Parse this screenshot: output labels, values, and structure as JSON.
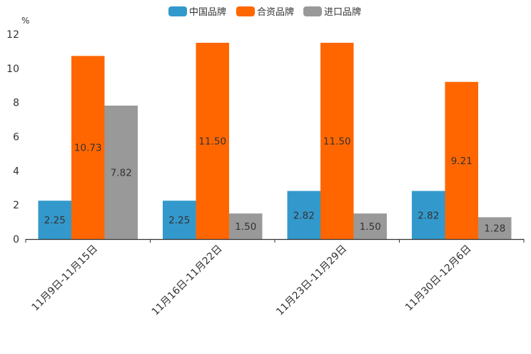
{
  "chart_data": {
    "type": "bar",
    "unit": "%",
    "categories": [
      "11月9日-11月15日",
      "11月16日-11月22日",
      "11月23日-11月29日",
      "11月30日-12月6日"
    ],
    "series": [
      {
        "name": "中国品牌",
        "color": "#3399cc",
        "values": [
          2.25,
          2.25,
          2.82,
          2.82
        ],
        "labels": [
          "2.25",
          "2.25",
          "2.82",
          "2.82"
        ]
      },
      {
        "name": "合资品牌",
        "color": "#ff6600",
        "values": [
          10.73,
          11.5,
          11.5,
          9.21
        ],
        "labels": [
          "10.73",
          "11.50",
          "11.50",
          "9.21"
        ]
      },
      {
        "name": "进口品牌",
        "color": "#999999",
        "values": [
          7.82,
          1.5,
          1.5,
          1.28
        ],
        "labels": [
          "7.82",
          "1.50",
          "1.50",
          "1.28"
        ]
      }
    ],
    "y_ticks": [
      "0",
      "2",
      "4",
      "6",
      "8",
      "10",
      "12"
    ],
    "ylim": [
      0,
      12
    ],
    "legend_position": "top-center",
    "grid": false
  }
}
